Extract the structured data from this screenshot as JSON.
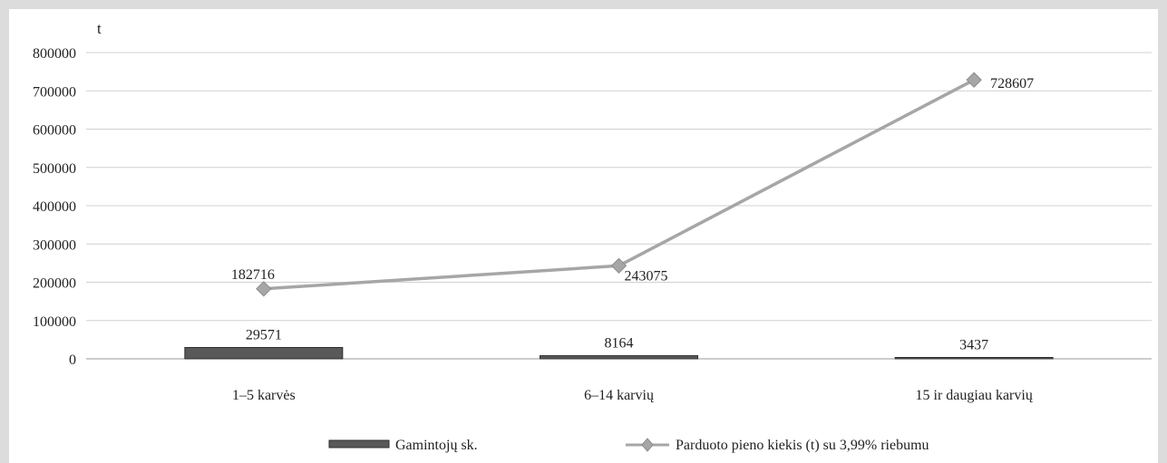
{
  "chart_data": {
    "type": "bar",
    "ylabel": "t",
    "ylim": [
      0,
      800000
    ],
    "yticks": [
      0,
      100000,
      200000,
      300000,
      400000,
      500000,
      600000,
      700000,
      800000
    ],
    "grid": true,
    "legend_position": "bottom",
    "categories": [
      "1–5 karvės",
      "6–14 karvių",
      "15 ir daugiau karvių"
    ],
    "series": [
      {
        "name": "Gamintojų sk.",
        "type": "bar",
        "values": [
          29571,
          8164,
          3437
        ],
        "color": "#595959"
      },
      {
        "name": "Parduoto pieno kiekis (t) su 3,99% riebumu",
        "type": "line",
        "values": [
          182716,
          243075,
          728607
        ],
        "color": "#a6a6a6"
      }
    ]
  }
}
